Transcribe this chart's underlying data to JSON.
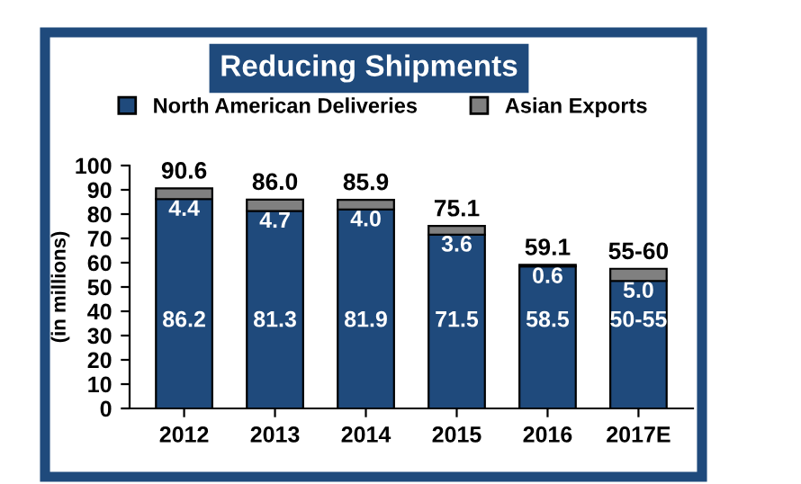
{
  "chart_data": {
    "type": "bar",
    "title": "Reducing Shipments",
    "ylabel": "(in millions)",
    "stacked": true,
    "categories": [
      "2012",
      "2013",
      "2014",
      "2015",
      "2016",
      "2017E"
    ],
    "series": [
      {
        "name": "North American Deliveries",
        "color": "#1f4a7c",
        "values": [
          86.2,
          81.3,
          81.9,
          71.5,
          58.5,
          52.5
        ],
        "value_labels": [
          "86.2",
          "81.3",
          "81.9",
          "71.5",
          "58.5",
          "50-55"
        ]
      },
      {
        "name": "Asian Exports",
        "color": "#808080",
        "values": [
          4.4,
          4.7,
          4.0,
          3.6,
          0.6,
          5.0
        ],
        "value_labels": [
          "4.4",
          "4.7",
          "4.0",
          "3.6",
          "0.6",
          "5.0"
        ]
      }
    ],
    "totals": [
      "90.6",
      "86.0",
      "85.9",
      "75.1",
      "59.1",
      "55-60"
    ],
    "ylim": [
      0,
      100
    ],
    "yticks": [
      0,
      10,
      20,
      30,
      40,
      50,
      60,
      70,
      80,
      90,
      100
    ],
    "grid": false,
    "legend": "top"
  }
}
